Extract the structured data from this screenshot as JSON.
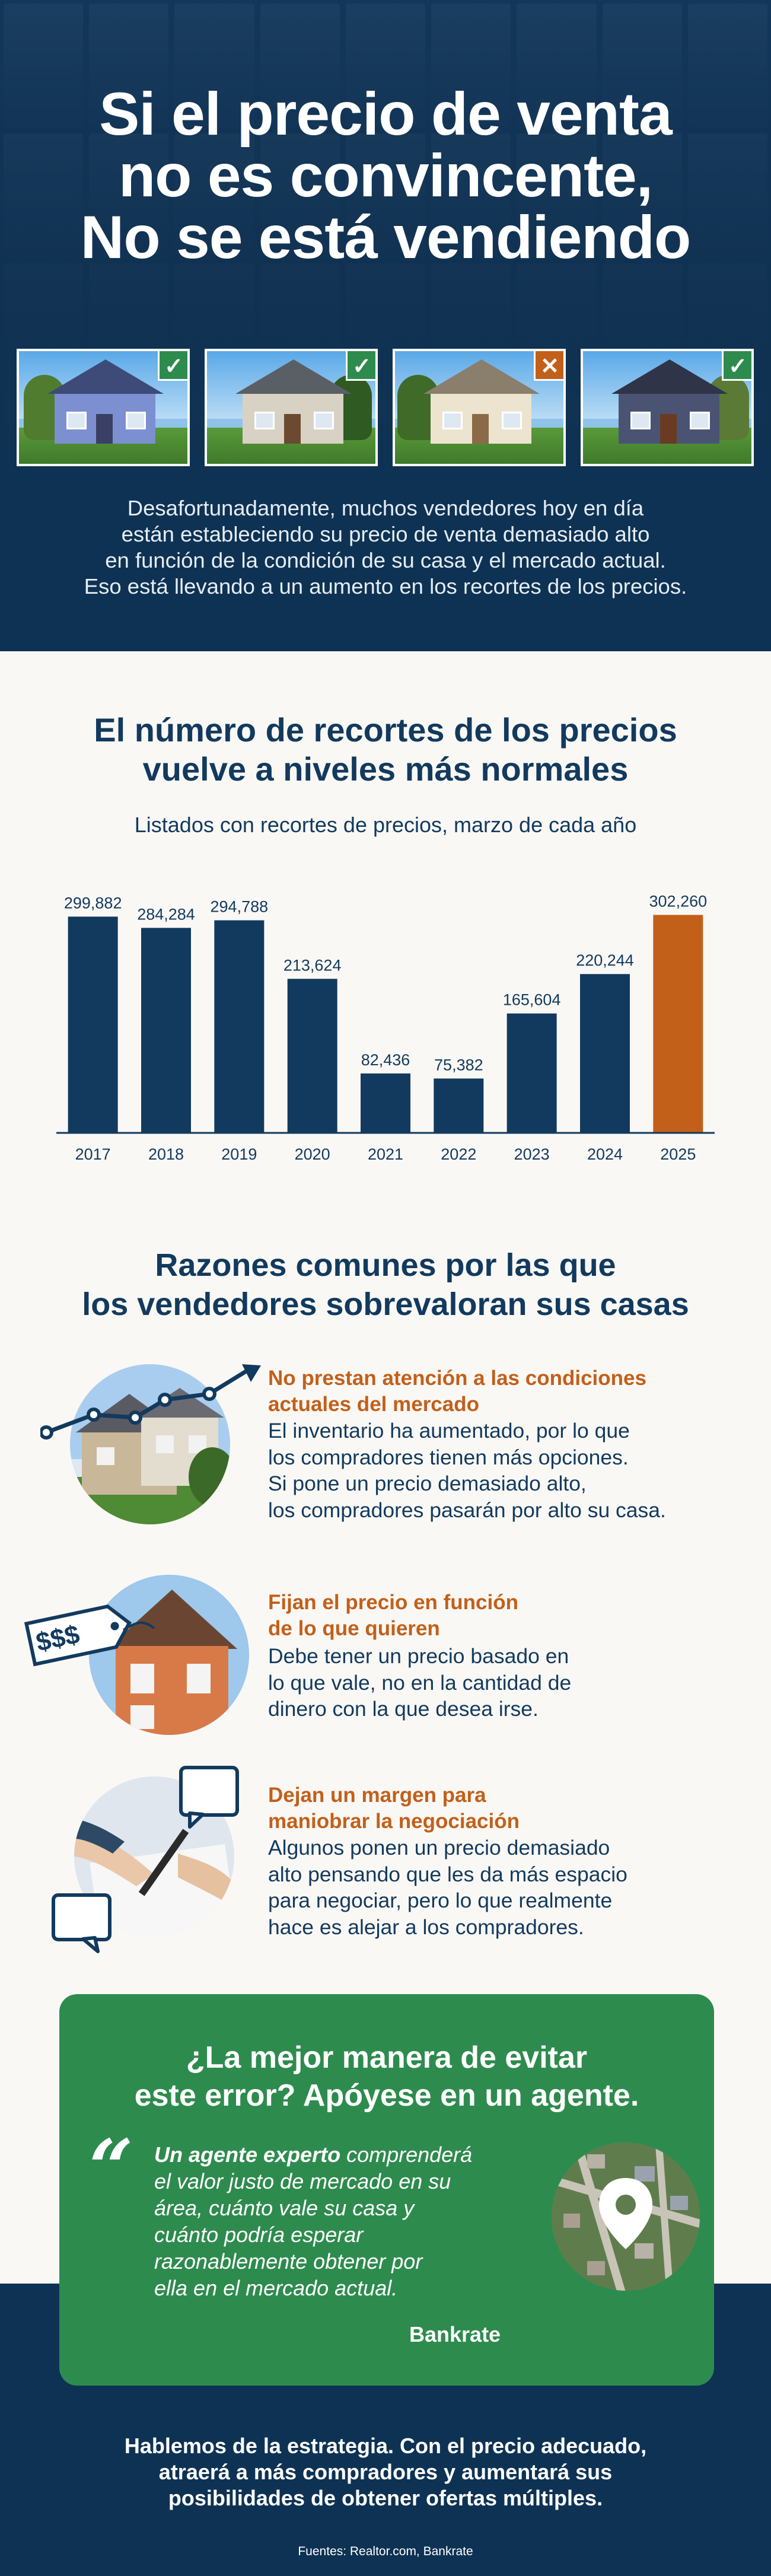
{
  "hero": {
    "title_lines": [
      "Si el precio de venta",
      "no es convincente,",
      "No se está vendiendo"
    ],
    "badges": [
      "✓",
      "✓",
      "✕",
      "✓"
    ],
    "description_lines": [
      "Desafortunadamente, muchos vendedores hoy en día",
      "están estableciendo su precio de venta demasiado alto",
      "en función de la condición de su casa y el mercado actual.",
      "Eso está llevando a un aumento en los recortes de los precios."
    ]
  },
  "chart_section": {
    "title_lines": [
      "El número de recortes de los precios",
      "vuelve a niveles más normales"
    ],
    "subtitle": "Listados con recortes de precios, marzo de cada año"
  },
  "chart_data": {
    "type": "bar",
    "title": "El número de recortes de los precios vuelve a niveles más normales",
    "subtitle": "Listados con recortes de precios, marzo de cada año",
    "categories": [
      "2017",
      "2018",
      "2019",
      "2020",
      "2021",
      "2022",
      "2023",
      "2024",
      "2025"
    ],
    "values": [
      299882,
      284284,
      294788,
      213624,
      82436,
      75382,
      165604,
      220244,
      302260
    ],
    "value_labels": [
      "299,882",
      "284,284",
      "294,788",
      "213,624",
      "82,436",
      "75,382",
      "165,604",
      "220,244",
      "302,260"
    ],
    "ylim": [
      0,
      340000
    ],
    "grid": false,
    "colors": {
      "default": "#123a5e",
      "highlight": "#c2601a"
    },
    "highlight_index": 8
  },
  "reasons_section": {
    "title_lines": [
      "Razones comunes por las que",
      "los vendedores sobrevaloran sus casas"
    ],
    "items": [
      {
        "title_lines": [
          "No prestan atención a las condiciones",
          "actuales del mercado"
        ],
        "body_lines": [
          "El inventario ha aumentado, por lo que",
          "los compradores tienen más opciones.",
          "Si pone un precio demasiado alto,",
          "los compradores pasarán por alto su casa."
        ]
      },
      {
        "title_lines": [
          "Fijan el precio en función",
          "de lo que quieren"
        ],
        "body_lines": [
          "Debe tener un precio basado en",
          "lo que vale, no en la cantidad de",
          "dinero con la que desea irse."
        ],
        "tag_text": "$$$"
      },
      {
        "title_lines": [
          "Dejan un margen para",
          "maniobrar la negociación"
        ],
        "body_lines": [
          "Algunos ponen un precio demasiado",
          "alto pensando que les da más espacio",
          "para negociar, pero lo que realmente",
          "hace es alejar a los compradores."
        ]
      }
    ]
  },
  "callout": {
    "title_lines": [
      "¿La mejor manera de evitar",
      "este error? Apóyese en un agente."
    ],
    "quote_mark": "“",
    "quote_bold": "Un agente experto",
    "quote_first_rest": " comprenderá",
    "quote_lines": [
      "el valor justo de mercado en su",
      "área, cuánto vale su casa y",
      "cuánto podría esperar",
      "razonablemente obtener por",
      "ella en el mercado actual."
    ],
    "source": "Bankrate"
  },
  "footer": {
    "text_lines": [
      "Hablemos de la estrategia. Con el precio adecuado,",
      "atraerá a más compradores y aumentará sus",
      "posibilidades de obtener ofertas múltiples."
    ],
    "sources": "Fuentes: Realtor.com, Bankrate"
  }
}
